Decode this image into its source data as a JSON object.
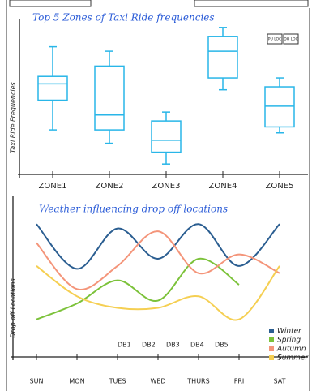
{
  "chart_data": [
    {
      "type": "box",
      "title": "Top 5 Zones of Taxi Ride frequencies",
      "y_label": "Taxi Ride Frequencies",
      "categories": [
        "ZONE1",
        "ZONE2",
        "ZONE3",
        "ZONE4",
        "ZONE5"
      ],
      "values": [
        {
          "min": 30,
          "q1": 50,
          "median": 61,
          "q3": 66,
          "max": 86
        },
        {
          "min": 21,
          "q1": 30,
          "median": 40,
          "q3": 73,
          "max": 83
        },
        {
          "min": 7,
          "q1": 15,
          "median": 23,
          "q3": 36,
          "max": 42
        },
        {
          "min": 57,
          "q1": 65,
          "median": 83,
          "q3": 93,
          "max": 99
        },
        {
          "min": 28,
          "q1": 32,
          "median": 46,
          "q3": 59,
          "max": 65
        }
      ],
      "color": "#29b6e8",
      "ylim": [
        0,
        100
      ],
      "legend_labels": [
        "PU LOC",
        "DO LOC"
      ]
    },
    {
      "type": "line",
      "title": "Weather influencing drop off locations",
      "y_label": "Drop off Locations",
      "categories": [
        "SUN",
        "MON",
        "TUES",
        "WED",
        "THURS",
        "FRI",
        "SAT"
      ],
      "series": [
        {
          "name": "Winter",
          "color": "#2b5e91",
          "values": [
            92,
            61,
            89,
            68,
            92,
            63,
            92
          ]
        },
        {
          "name": "Spring",
          "color": "#7cc23a",
          "values": [
            26,
            37,
            53,
            39,
            68,
            50,
            null
          ]
        },
        {
          "name": "Autumn",
          "color": "#f4957a",
          "values": [
            79,
            47,
            63,
            87,
            58,
            71,
            58
          ]
        },
        {
          "name": "Summer",
          "color": "#f5cf52",
          "values": [
            63,
            42,
            34,
            34,
            42,
            26,
            63
          ]
        }
      ],
      "ylim": [
        0,
        100
      ],
      "annotations": [
        "DB1",
        "DB2",
        "DB3",
        "DB4",
        "DB5"
      ]
    }
  ]
}
